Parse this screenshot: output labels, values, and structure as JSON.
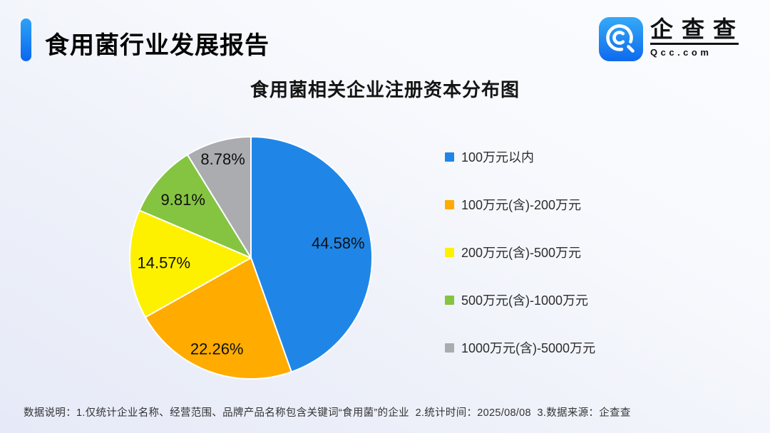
{
  "header": {
    "title": "食用菌行业发展报告"
  },
  "logo": {
    "brand": "企查查",
    "domain": "Qcc.com"
  },
  "chart_data": {
    "type": "pie",
    "title": "食用菌相关企业注册资本分布图",
    "categories": [
      "100万元以内",
      "100万元(含)-200万元",
      "200万元(含)-500万元",
      "500万元(含)-1000万元",
      "1000万元(含)-5000万元"
    ],
    "values": [
      44.58,
      22.26,
      14.57,
      9.81,
      8.78
    ],
    "labels": [
      "44.58%",
      "22.26%",
      "14.57%",
      "9.81%",
      "8.78%"
    ],
    "colors": [
      "#1f86e8",
      "#ffab00",
      "#fdf100",
      "#85c440",
      "#aaacb0"
    ],
    "unit": "%",
    "start_angle_deg": -90,
    "direction": "clockwise",
    "legend_position": "right",
    "slice_border_color": "#ffffff",
    "label_radius": [
      0.73,
      0.8,
      0.72,
      0.74,
      0.85
    ]
  },
  "footer": {
    "note": "数据说明：1.仅统计企业名称、经营范围、品牌产品名称包含关键词“食用菌”的企业  2.统计时间：2025/08/08  3.数据来源：企查查"
  },
  "brand_colors": {
    "accent_blue_top": "#2da2f6",
    "accent_blue_bottom": "#0a67f0",
    "logo_blue_top": "#35aaf7",
    "logo_blue_bottom": "#0e6aee",
    "text_dark": "#111111"
  }
}
